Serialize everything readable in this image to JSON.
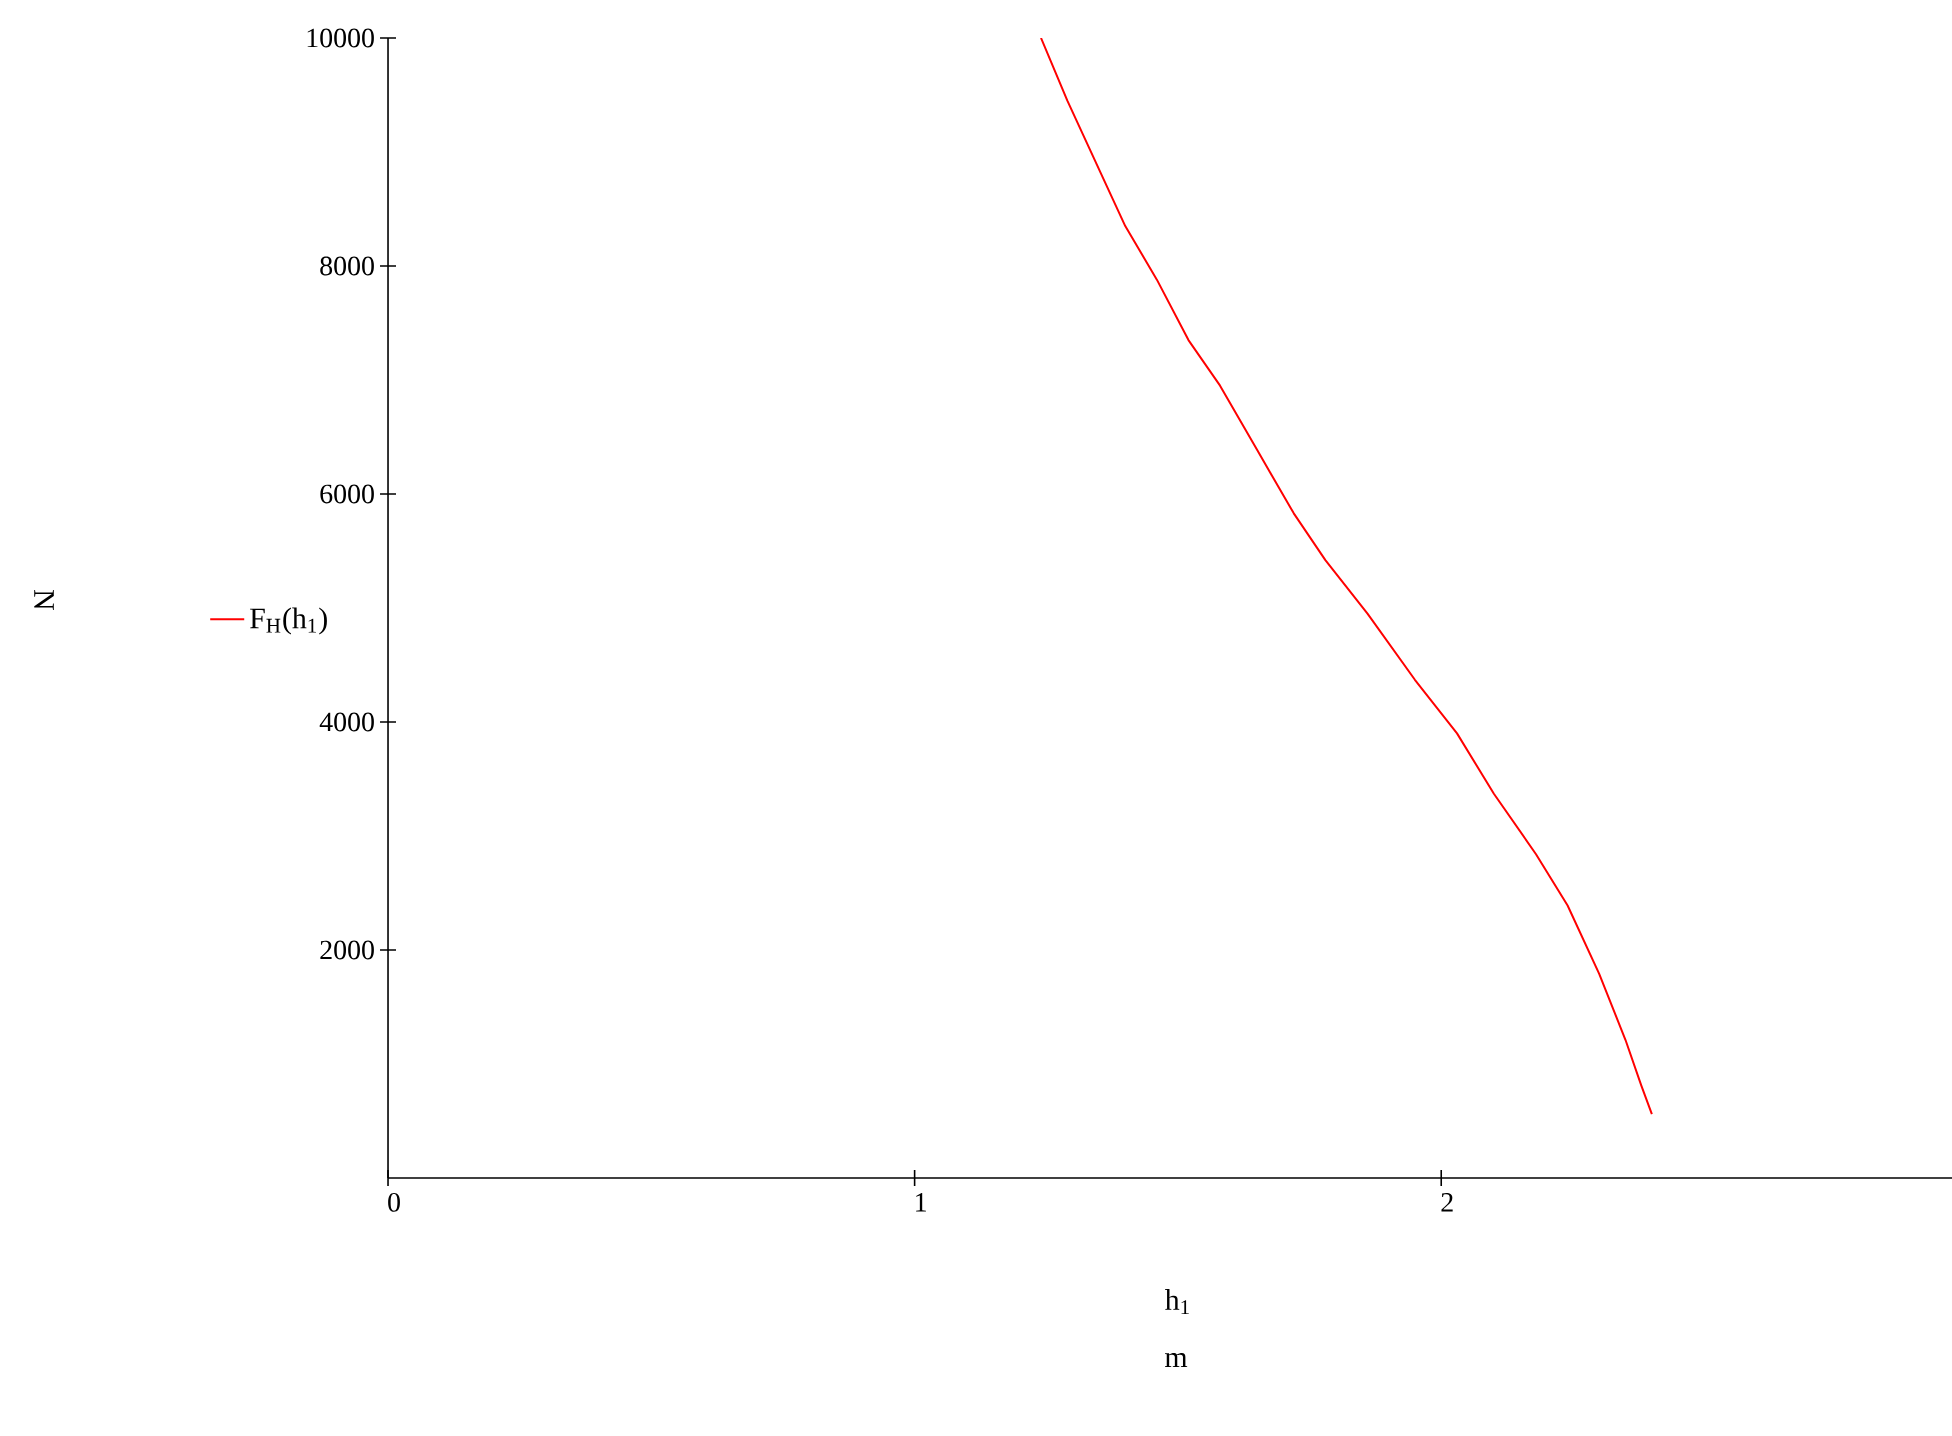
{
  "chart_data": {
    "type": "line",
    "xlabel": "h$_{1}$",
    "annotations": [
      "m",
      "N"
    ],
    "xlim": [
      0,
      2.97
    ],
    "ylim": [
      0,
      10000
    ],
    "xticks": [
      0,
      1,
      2
    ],
    "yticks": [
      2000,
      4000,
      6000,
      8000,
      10000
    ],
    "grid": false,
    "legend": "left",
    "marker": "none",
    "line_style": "solid",
    "series": [
      {
        "name": "F$_{H}$(h$_{1}$)",
        "color": "#ff0000",
        "x": [
          1.24,
          1.29,
          1.35,
          1.4,
          1.46,
          1.52,
          1.58,
          1.65,
          1.72,
          1.78,
          1.86,
          1.95,
          2.03,
          2.1,
          2.18,
          2.24,
          2.3,
          2.35,
          2.38,
          2.4
        ],
        "values": [
          10000,
          9450,
          8850,
          8350,
          7880,
          7350,
          6950,
          6390,
          5830,
          5420,
          4950,
          4370,
          3900,
          3370,
          2840,
          2390,
          1790,
          1210,
          810,
          560
        ]
      }
    ]
  }
}
